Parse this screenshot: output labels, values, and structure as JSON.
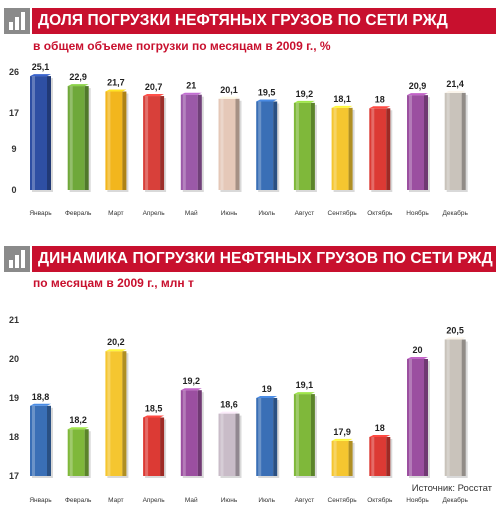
{
  "charts": [
    {
      "title": "ДОЛЯ ПОГРУЗКИ НЕФТЯНЫХ ГРУЗОВ ПО СЕТИ РЖД",
      "subtitle": "в общем объеме  погрузки по месяцам в 2009 г., %"
    },
    {
      "title": "ДИНАМИКА ПОГРУЗКИ НЕФТЯНЫХ ГРУЗОВ ПО СЕТИ РЖД",
      "subtitle": "по месяцам в 2009 г., млн т"
    }
  ],
  "chart_data": [
    {
      "type": "bar",
      "title": "ДОЛЯ ПОГРУЗКИ НЕФТЯНЫХ ГРУЗОВ ПО СЕТИ РЖД",
      "subtitle": "в общем объеме  погрузки по месяцам в 2009 г., %",
      "categories": [
        "Январь",
        "Февраль",
        "Март",
        "Апрель",
        "Май",
        "Июнь",
        "Июль",
        "Август",
        "Сентябрь",
        "Октябрь",
        "Ноябрь",
        "Декабрь"
      ],
      "values": [
        25.1,
        22.9,
        21.7,
        20.7,
        21,
        20.1,
        19.5,
        19.2,
        18.1,
        18,
        20.9,
        21.4
      ],
      "value_labels": [
        "25,1",
        "22,9",
        "21,7",
        "20,7",
        "21",
        "20,1",
        "19,5",
        "19,2",
        "18,1",
        "18",
        "20,9",
        "21,4"
      ],
      "yticks": [
        "26",
        "17",
        "9",
        "0"
      ],
      "ylim": [
        0,
        26
      ],
      "xlabel": "",
      "ylabel": "",
      "grid": false,
      "colors": [
        "#2e4fa3",
        "#6fa83a",
        "#f2b61d",
        "#d8403a",
        "#9b59a8",
        "#e5c8b8",
        "#3a6fb6",
        "#7fb83a",
        "#f5c630",
        "#dc3a34",
        "#9b4fa0",
        "#c9c3bb"
      ]
    },
    {
      "type": "bar",
      "title": "ДИНАМИКА ПОГРУЗКИ НЕФТЯНЫХ ГРУЗОВ ПО СЕТИ РЖД",
      "subtitle": "по месяцам в 2009 г., млн т",
      "categories": [
        "Январь",
        "Февраль",
        "Март",
        "Апрель",
        "Май",
        "Июнь",
        "Июль",
        "Август",
        "Сентябрь",
        "Октябрь",
        "Ноябрь",
        "Декабрь"
      ],
      "values": [
        18.8,
        18.2,
        20.2,
        18.5,
        19.2,
        18.6,
        19,
        19.1,
        17.9,
        18,
        20,
        20.5
      ],
      "value_labels": [
        "18,8",
        "18,2",
        "20,2",
        "18,5",
        "19,2",
        "18,6",
        "19",
        "19,1",
        "17,9",
        "18",
        "20",
        "20,5"
      ],
      "yticks": [
        "21",
        "20",
        "19",
        "18",
        "17"
      ],
      "ylim": [
        17,
        21
      ],
      "xlabel": "",
      "ylabel": "",
      "grid": false,
      "colors": [
        "#3a6fb6",
        "#7fb83a",
        "#f5c630",
        "#dc3a34",
        "#9b4fa0",
        "#c9bcc8",
        "#3a6fb6",
        "#7fb83a",
        "#f5c630",
        "#dc3a34",
        "#9b4fa0",
        "#c9c3bb"
      ]
    }
  ],
  "source": "Источник: Росстат"
}
